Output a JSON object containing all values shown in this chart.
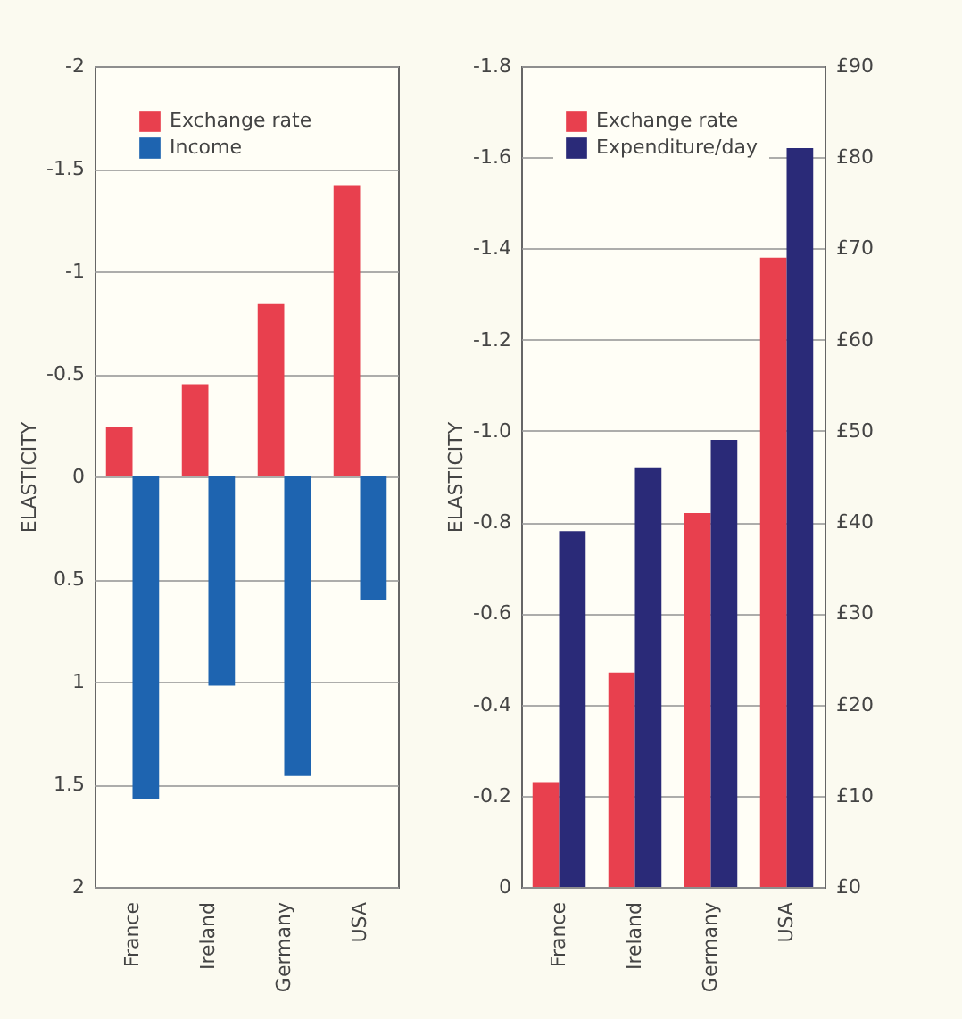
{
  "chart_data": [
    {
      "type": "bar",
      "ylabel": "ELASTICITY",
      "categories": [
        "France",
        "Ireland",
        "Germany",
        "USA"
      ],
      "series": [
        {
          "name": "Exchange rate",
          "color": "#e8404e",
          "values": [
            -0.24,
            -0.45,
            -0.84,
            -1.42
          ]
        },
        {
          "name": "Income",
          "color": "#1e64b0",
          "values": [
            1.57,
            1.02,
            1.46,
            0.6
          ]
        }
      ],
      "ylim": [
        2,
        -2
      ],
      "yticks": [
        -2,
        -1.5,
        -1,
        -0.5,
        0,
        0.5,
        1,
        1.5,
        2
      ],
      "grid": "y",
      "legend": "top left"
    },
    {
      "type": "bar",
      "ylabel": "ELASTICITY",
      "categories": [
        "France",
        "Ireland",
        "Germany",
        "USA"
      ],
      "series": [
        {
          "name": "Exchange rate",
          "color": "#e8404e",
          "values": [
            -0.23,
            -0.47,
            -0.82,
            -1.38
          ]
        },
        {
          "name": "Expenditure/day",
          "color": "#2a2a78",
          "values": [
            39,
            46,
            49,
            81
          ],
          "axis": "y2"
        }
      ],
      "ylim": [
        0,
        -1.8
      ],
      "yticks": [
        {
          "value": -1.8,
          "label": "-1.8"
        },
        {
          "value": -1.6,
          "label": "-1.6"
        },
        {
          "value": -1.4,
          "label": "-1.4"
        },
        {
          "value": -1.2,
          "label": "-1.2"
        },
        {
          "value": -1,
          "label": "-1.0"
        },
        {
          "value": -0.8,
          "label": "-0.8"
        },
        {
          "value": -0.6,
          "label": "-0.6"
        },
        {
          "value": -0.4,
          "label": "-0.4"
        },
        {
          "value": -0.2,
          "label": "-0.2"
        },
        0
      ],
      "y2lim": [
        0,
        90
      ],
      "y2ticks": [
        {
          "value": 0,
          "label": "£0"
        },
        {
          "value": 10,
          "label": "£10"
        },
        {
          "value": 20,
          "label": "£20"
        },
        {
          "value": 30,
          "label": "£30"
        },
        {
          "value": 40,
          "label": "£40"
        },
        {
          "value": 50,
          "label": "£50"
        },
        {
          "value": 60,
          "label": "£60"
        },
        {
          "value": 70,
          "label": "£70"
        },
        {
          "value": 80,
          "label": "£80"
        },
        {
          "value": 90,
          "label": "£90"
        }
      ],
      "grid": "y",
      "legend": "top left"
    }
  ]
}
